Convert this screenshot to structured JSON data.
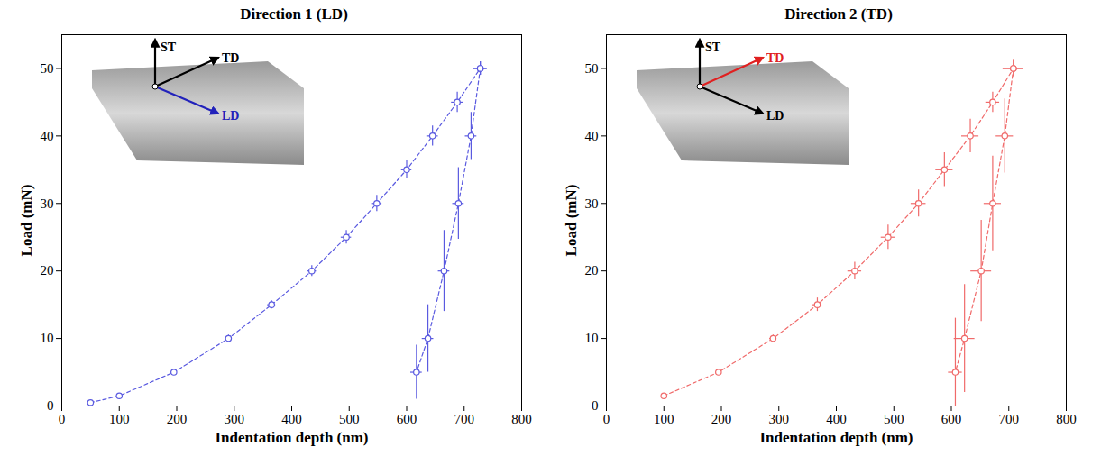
{
  "chart_data": [
    {
      "type": "line",
      "title": "Direction 1 (LD)",
      "x_label": "Indentation depth (nm)",
      "y_label": "Load (mN)",
      "xlim": [
        0,
        800
      ],
      "xticks": [
        0,
        100,
        200,
        300,
        400,
        500,
        600,
        700,
        800
      ],
      "ylim": [
        0,
        55
      ],
      "yticks": [
        0,
        10,
        20,
        30,
        40,
        50
      ],
      "grid": false,
      "marker": "circle",
      "line_style": "dashed",
      "annotations": [
        {
          "text": "ST",
          "color": "#000000"
        },
        {
          "text": "TD",
          "color": "#000000"
        },
        {
          "text": "LD",
          "color": "#2222bb"
        }
      ],
      "series": [
        {
          "color": "#5a5ae0",
          "x": [
            50,
            100,
            195,
            290,
            365,
            435,
            495,
            548,
            600,
            645,
            688,
            728
          ],
          "values": [
            0.5,
            1.5,
            5,
            10,
            15,
            20,
            25,
            30,
            35,
            40,
            45,
            50
          ],
          "x_error": [
            3,
            3,
            5,
            6,
            7,
            8,
            9,
            9,
            9,
            10,
            10,
            12
          ],
          "y_error": [
            0.3,
            0.3,
            0.4,
            0.5,
            0.6,
            0.8,
            1,
            1.2,
            1.3,
            1.5,
            1.5,
            1
          ]
        },
        {
          "color": "#5a5ae0",
          "x": [
            728,
            712,
            690,
            665,
            637,
            617
          ],
          "values": [
            50,
            40,
            30,
            20,
            10,
            5
          ],
          "x_error": [
            12,
            10,
            10,
            10,
            10,
            10
          ],
          "y_error": [
            1,
            3.5,
            5.3,
            6,
            5,
            4
          ]
        }
      ]
    },
    {
      "type": "line",
      "title": "Direction 2 (TD)",
      "x_label": "Indentation depth (nm)",
      "y_label": "Load (mN)",
      "xlim": [
        0,
        800
      ],
      "xticks": [
        0,
        100,
        200,
        300,
        400,
        500,
        600,
        700,
        800
      ],
      "ylim": [
        0,
        55
      ],
      "yticks": [
        0,
        10,
        20,
        30,
        40,
        50
      ],
      "grid": false,
      "marker": "circle",
      "line_style": "dashed",
      "annotations": [
        {
          "text": "ST",
          "color": "#000000"
        },
        {
          "text": "TD",
          "color": "#e02020"
        },
        {
          "text": "LD",
          "color": "#000000"
        }
      ],
      "series": [
        {
          "color": "#f06a6a",
          "x": [
            100,
            195,
            290,
            367,
            432,
            490,
            543,
            588,
            633,
            672,
            708
          ],
          "values": [
            1.5,
            5,
            10,
            15,
            20,
            25,
            30,
            35,
            40,
            45,
            50
          ],
          "x_error": [
            3,
            5,
            6,
            8,
            12,
            12,
            13,
            15,
            15,
            12,
            18
          ],
          "y_error": [
            0.3,
            0.3,
            0.5,
            1,
            1.3,
            1.8,
            2,
            2.5,
            2.5,
            1.5,
            1.2
          ]
        },
        {
          "color": "#f06a6a",
          "x": [
            708,
            693,
            672,
            652,
            623,
            607
          ],
          "values": [
            50,
            40,
            30,
            20,
            10,
            5
          ],
          "x_error": [
            18,
            15,
            15,
            18,
            18,
            12
          ],
          "y_error": [
            1.2,
            5.5,
            7,
            7.5,
            8,
            8
          ]
        }
      ]
    }
  ]
}
